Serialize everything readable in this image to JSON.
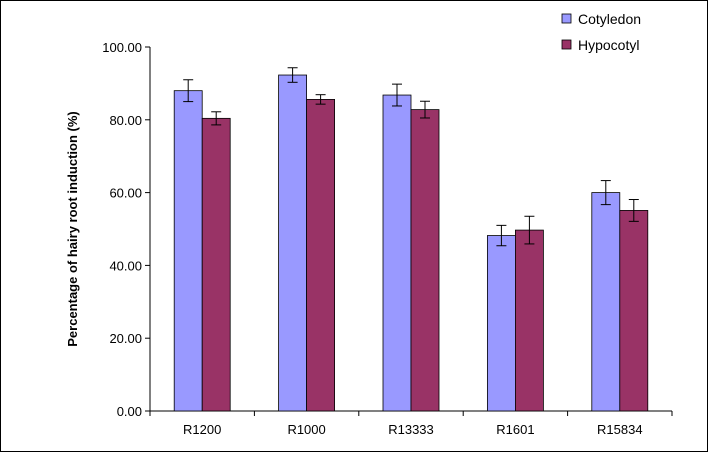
{
  "chart_data": {
    "type": "bar",
    "title": "",
    "xlabel": "",
    "ylabel": "Percentage of hairy root induction (%)",
    "categories": [
      "R1200",
      "R1000",
      "R13333",
      "R1601",
      "R15834"
    ],
    "ylim": [
      0,
      100
    ],
    "yticks": [
      "0.00",
      "20.00",
      "40.00",
      "60.00",
      "80.00",
      "100.00"
    ],
    "grid": false,
    "legend_position": "top-right",
    "series": [
      {
        "name": "Cotyledon",
        "color": "#9999ff",
        "values": [
          88.0,
          92.3,
          86.8,
          48.2,
          60.0
        ],
        "errors": [
          3.0,
          2.0,
          3.0,
          2.8,
          3.3
        ]
      },
      {
        "name": "Hypocotyl",
        "color": "#993366",
        "values": [
          80.4,
          85.6,
          82.8,
          49.7,
          55.1
        ],
        "errors": [
          1.8,
          1.3,
          2.3,
          3.8,
          3.0
        ]
      }
    ]
  }
}
